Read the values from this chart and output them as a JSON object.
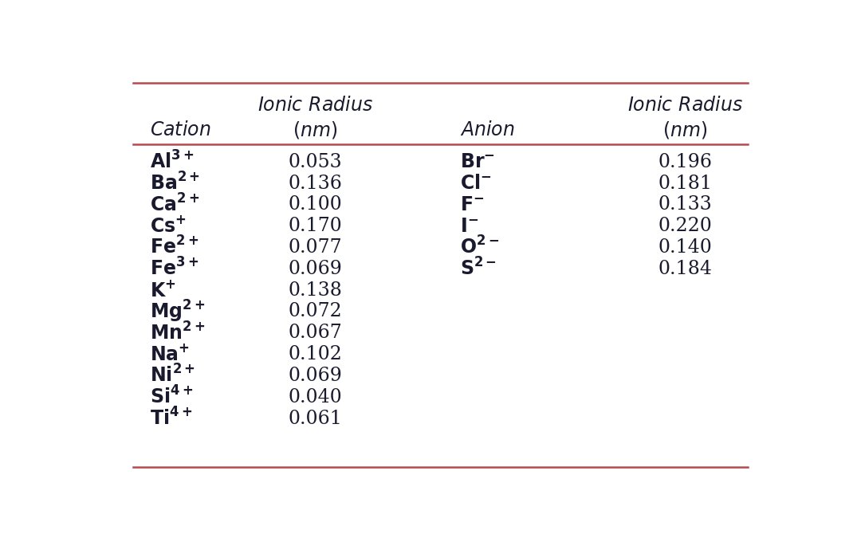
{
  "cations": [
    {
      "label": "$\\mathbf{Al}^{\\mathbf{3+}}$",
      "radius": "0.053"
    },
    {
      "label": "$\\mathbf{Ba}^{\\mathbf{2+}}$",
      "radius": "0.136"
    },
    {
      "label": "$\\mathbf{Ca}^{\\mathbf{2+}}$",
      "radius": "0.100"
    },
    {
      "label": "$\\mathbf{Cs}^{\\mathbf{+}}$",
      "radius": "0.170"
    },
    {
      "label": "$\\mathbf{Fe}^{\\mathbf{2+}}$",
      "radius": "0.077"
    },
    {
      "label": "$\\mathbf{Fe}^{\\mathbf{3+}}$",
      "radius": "0.069"
    },
    {
      "label": "$\\mathbf{K}^{\\mathbf{+}}$",
      "radius": "0.138"
    },
    {
      "label": "$\\mathbf{Mg}^{\\mathbf{2+}}$",
      "radius": "0.072"
    },
    {
      "label": "$\\mathbf{Mn}^{\\mathbf{2+}}$",
      "radius": "0.067"
    },
    {
      "label": "$\\mathbf{Na}^{\\mathbf{+}}$",
      "radius": "0.102"
    },
    {
      "label": "$\\mathbf{Ni}^{\\mathbf{2+}}$",
      "radius": "0.069"
    },
    {
      "label": "$\\mathbf{Si}^{\\mathbf{4+}}$",
      "radius": "0.040"
    },
    {
      "label": "$\\mathbf{Ti}^{\\mathbf{4+}}$",
      "radius": "0.061"
    }
  ],
  "anions": [
    {
      "label": "$\\mathbf{Br}^{\\mathbf{-}}$",
      "radius": "0.196"
    },
    {
      "label": "$\\mathbf{Cl}^{\\mathbf{-}}$",
      "radius": "0.181"
    },
    {
      "label": "$\\mathbf{F}^{\\mathbf{-}}$",
      "radius": "0.133"
    },
    {
      "label": "$\\mathbf{I}^{\\mathbf{-}}$",
      "radius": "0.220"
    },
    {
      "label": "$\\mathbf{O}^{\\mathbf{2-}}$",
      "radius": "0.140"
    },
    {
      "label": "$\\mathbf{S}^{\\mathbf{2-}}$",
      "radius": "0.184"
    }
  ],
  "header1_cation": "$\\mathit{Ionic\\ Radius}$",
  "header1_anion": "$\\mathit{Ionic\\ Radius}$",
  "header2_cation": "$\\mathit{Cation}$",
  "header2_nm_cat": "$\\mathit{(nm)}$",
  "header2_anion": "$\\mathit{Anion}$",
  "header2_nm_ani": "$\\mathit{(nm)}$",
  "line_color": "#b5494e",
  "text_color": "#1a1a2e",
  "bg_color": "#ffffff",
  "fig_width": 10.7,
  "fig_height": 6.7
}
